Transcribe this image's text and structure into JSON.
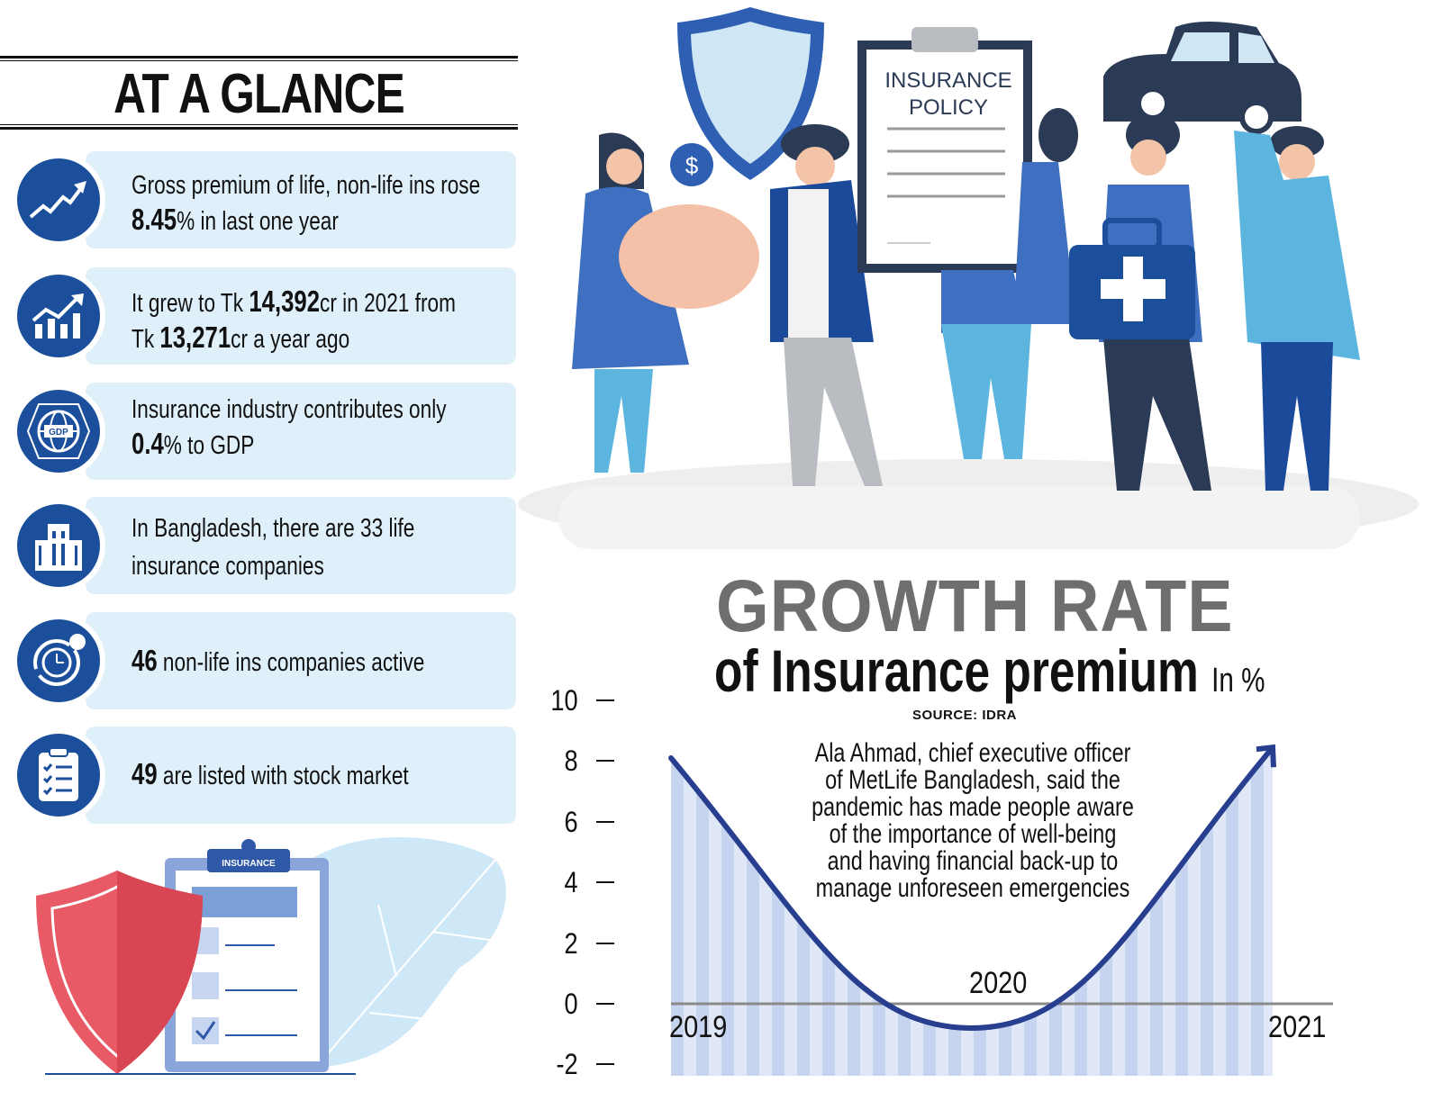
{
  "left_panel": {
    "title": "AT A GLANCE",
    "cards": [
      {
        "icon": "trend-up-arrow-icon",
        "l1": "Gross premium of life, non-life ins rose",
        "b2": "8.45",
        "l2": "% in last one year"
      },
      {
        "icon": "bar-chart-growth-icon",
        "l1a": "It grew to Tk ",
        "b1": "14,392",
        "l1b": "cr in 2021 from",
        "l2a": "Tk ",
        "b2": "13,271",
        "l2b": "cr a year ago"
      },
      {
        "icon": "gdp-globe-icon",
        "l1": "Insurance industry contributes only",
        "b2": "0.4",
        "l2": "% to GDP",
        "glyph": "GDP"
      },
      {
        "icon": "building-icon",
        "l1": "In Bangladesh, there are 33 life",
        "l2": "insurance companies"
      },
      {
        "icon": "clock-cycle-icon",
        "b1": "46",
        "l1": " non-life ins companies active"
      },
      {
        "icon": "checklist-clipboard-icon",
        "b1": "49",
        "l1": " are listed with stock market"
      }
    ],
    "illustration": {
      "clipboard_label": "INSURANCE"
    }
  },
  "top_illustration": {
    "policy_label_1": "INSURANCE",
    "policy_label_2": "POLICY",
    "coin_symbol": "$"
  },
  "colors": {
    "navy": "#1b4f9c",
    "card_bg": "#dff0fb",
    "title_gray": "#6d6e70",
    "line": "#283f8f",
    "stripe_a": "#c6d4ef",
    "stripe_b": "#e0e8f7",
    "shield_red": "#e85a66"
  },
  "chart_data": {
    "type": "line",
    "title": "GROWTH RATE",
    "subtitle": "of Insurance premium",
    "unit": "In %",
    "source": "SOURCE: IDRA",
    "x": [
      "2019",
      "2020",
      "2021"
    ],
    "values": [
      8.1,
      -0.8,
      8.45
    ],
    "ylim": [
      -2,
      10
    ],
    "yticks": [
      "10",
      "8",
      "6",
      "4",
      "2",
      "0",
      "-2"
    ],
    "grid": false,
    "legend": "none",
    "quote": [
      "Ala Ahmad, chief executive officer",
      "of MetLife Bangladesh, said the",
      "pandemic has made people aware",
      "of the importance of well-being",
      "and having financial back-up to",
      "manage unforeseen emergencies"
    ]
  }
}
